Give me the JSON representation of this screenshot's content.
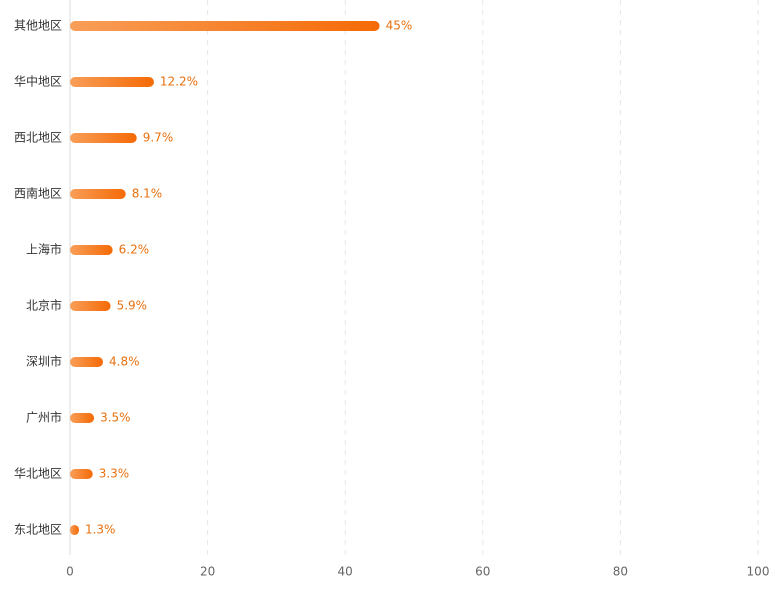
{
  "chart_data": {
    "type": "hbar",
    "categories": [
      "其他地区",
      "华中地区",
      "西北地区",
      "西南地区",
      "上海市",
      "北京市",
      "深圳市",
      "广州市",
      "华北地区",
      "东北地区"
    ],
    "values": [
      45,
      12.2,
      9.7,
      8.1,
      6.2,
      5.9,
      4.8,
      3.5,
      3.3,
      1.3
    ],
    "value_labels": [
      "45%",
      "12.2%",
      "9.7%",
      "8.1%",
      "6.2%",
      "5.9%",
      "4.8%",
      "3.5%",
      "3.3%",
      "1.3%"
    ],
    "gradient": [
      "#f89e58",
      "#f56a06"
    ],
    "xlim": [
      0,
      100
    ],
    "xticks": [
      0,
      20,
      40,
      60,
      80,
      100
    ],
    "grid": true
  }
}
